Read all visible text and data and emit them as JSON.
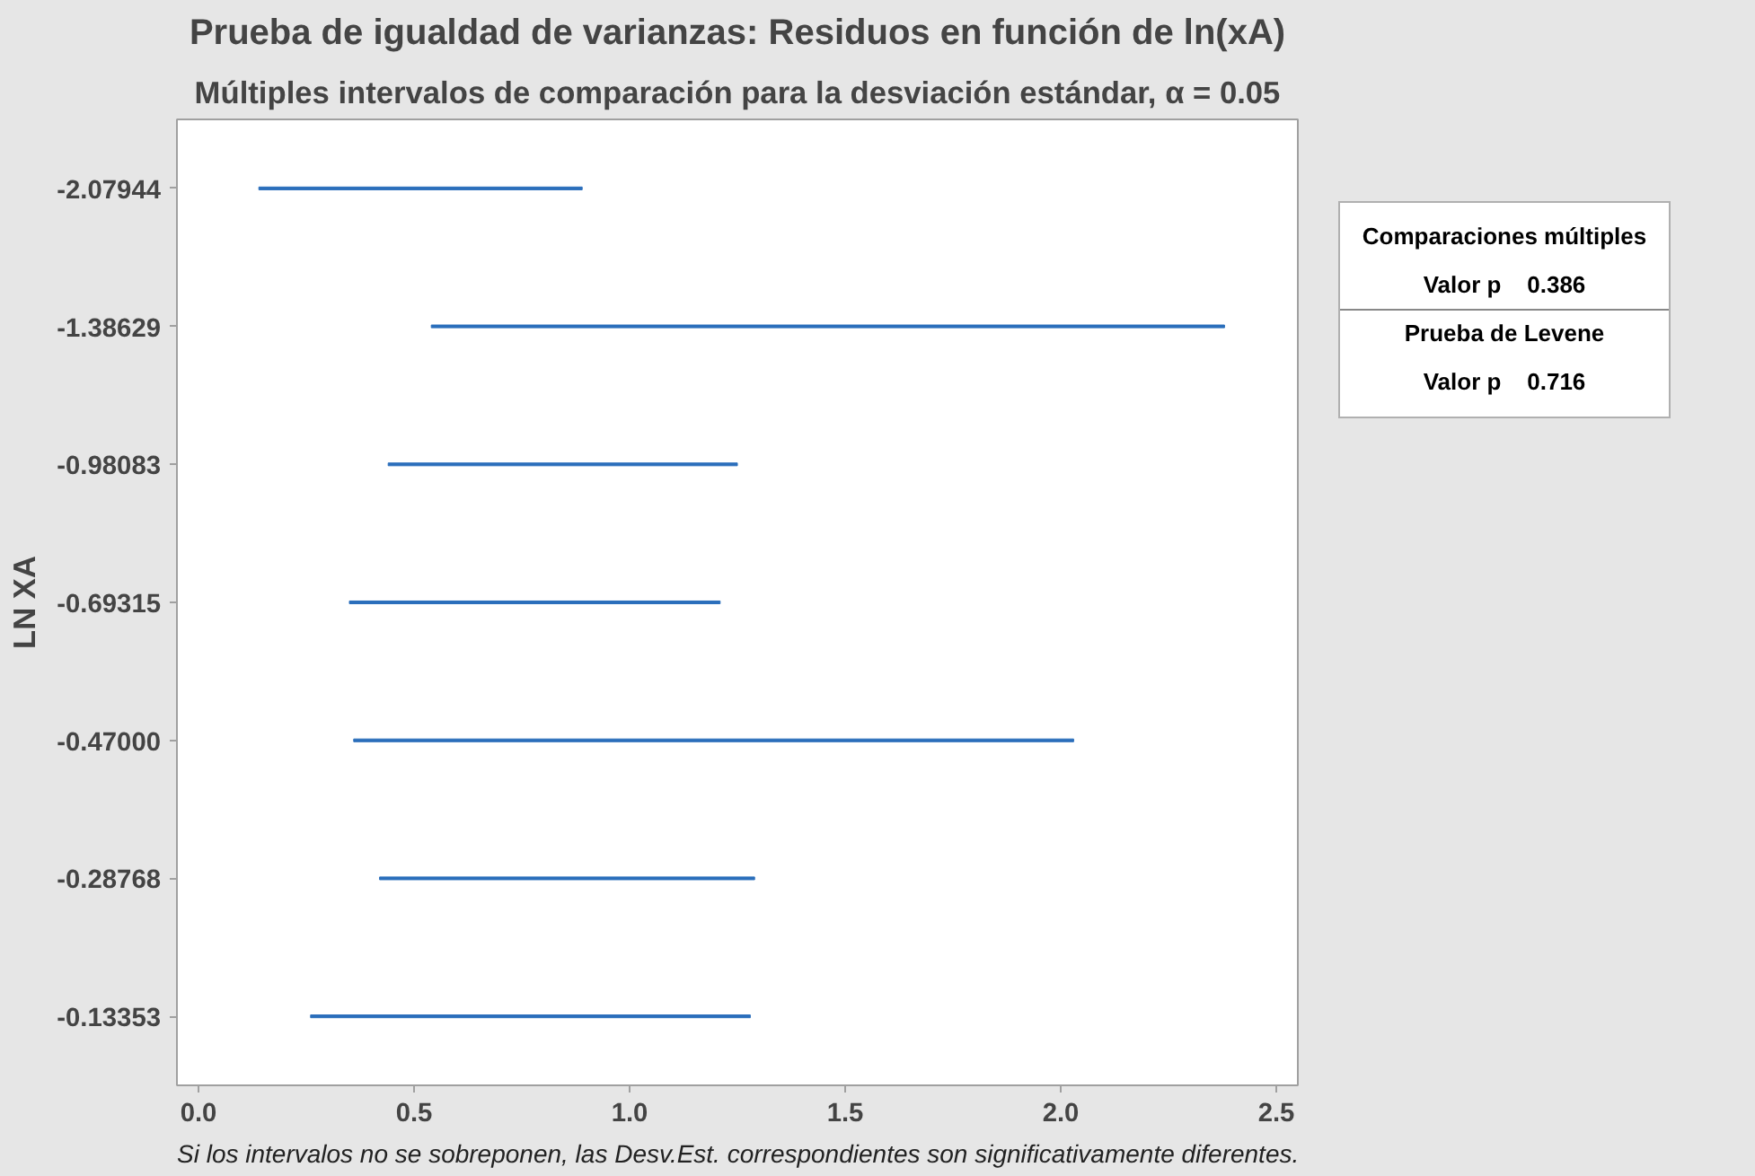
{
  "chart_data": {
    "type": "bar",
    "orientation": "horizontal",
    "title": "Prueba de igualdad de varianzas: Residuos en función de ln(xA)",
    "subtitle": "Múltiples intervalos de comparación para la desviación estándar, α = 0.05",
    "ylabel": "LN XA",
    "categories": [
      "-2.07944",
      "-1.38629",
      "-0.98083",
      "-0.69315",
      "-0.47000",
      "-0.28768",
      "-0.13353"
    ],
    "base": [
      0.14,
      0.54,
      0.44,
      0.35,
      0.36,
      0.42,
      0.26
    ],
    "values": [
      0.75,
      1.84,
      0.81,
      0.86,
      1.67,
      0.87,
      1.02
    ],
    "color": "#2a6ebb",
    "xlim": [
      -0.05,
      2.55
    ],
    "xticks": [
      {
        "value": 0,
        "label": "0.0"
      },
      0.5,
      {
        "value": 1,
        "label": "1.0"
      },
      1.5,
      {
        "value": 2,
        "label": "2.0"
      },
      2.5
    ],
    "annotations": [
      "Comparaciones múltiples",
      "Valor p    0.386",
      "Prueba de Levene",
      "Valor p    0.716",
      "Si los intervalos no se sobreponen, las Desv.Est. correspondientes son significativamente diferentes."
    ]
  }
}
